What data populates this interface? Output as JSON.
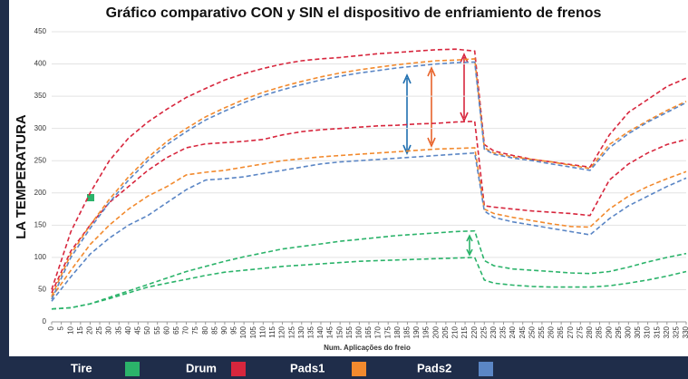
{
  "chart_data": {
    "type": "line",
    "title": "Gráfico comparativo CON y SIN el dispositivo de enfriamiento de frenos",
    "ylabel": "LA TEMPERATURA",
    "xlabel": "Num. Aplicações do freio",
    "x": [
      0,
      10,
      20,
      30,
      40,
      50,
      60,
      70,
      80,
      90,
      100,
      110,
      120,
      130,
      140,
      150,
      160,
      170,
      180,
      190,
      200,
      210,
      220,
      225,
      230,
      240,
      250,
      260,
      270,
      280,
      290,
      300,
      310,
      320,
      330
    ],
    "xlim": [
      0,
      330
    ],
    "xticks": [
      0,
      5,
      10,
      15,
      20,
      25,
      30,
      35,
      40,
      45,
      50,
      55,
      60,
      65,
      70,
      75,
      80,
      85,
      90,
      95,
      100,
      105,
      110,
      115,
      120,
      125,
      130,
      135,
      140,
      145,
      150,
      155,
      160,
      165,
      170,
      175,
      180,
      185,
      190,
      195,
      200,
      205,
      210,
      215,
      220,
      225,
      230,
      235,
      240,
      245,
      250,
      255,
      260,
      265,
      270,
      275,
      280,
      285,
      290,
      295,
      300,
      305,
      310,
      315,
      320,
      325,
      330
    ],
    "ylim": [
      0,
      450
    ],
    "yticks": [
      0,
      50,
      100,
      150,
      200,
      250,
      300,
      350,
      400,
      450
    ],
    "dashed": true,
    "legend": [
      {
        "name": "Tire",
        "color": "#2bb36a"
      },
      {
        "name": "Drum",
        "color": "#d7263d"
      },
      {
        "name": "Pads1",
        "color": "#f28a2e"
      },
      {
        "name": "Pads2",
        "color": "#5b86c5"
      }
    ],
    "series": [
      {
        "color": "#d7263d",
        "values": [
          50,
          140,
          200,
          250,
          285,
          310,
          330,
          348,
          362,
          375,
          385,
          393,
          400,
          405,
          408,
          410,
          413,
          416,
          418,
          420,
          422,
          423,
          420,
          275,
          265,
          258,
          252,
          248,
          244,
          240,
          290,
          325,
          345,
          365,
          378
        ]
      },
      {
        "color": "#d7263d",
        "values": [
          45,
          110,
          150,
          185,
          210,
          235,
          255,
          270,
          276,
          278,
          280,
          283,
          290,
          295,
          298,
          300,
          302,
          304,
          305,
          307,
          308,
          310,
          311,
          180,
          178,
          175,
          172,
          170,
          168,
          165,
          220,
          245,
          262,
          275,
          283
        ]
      },
      {
        "color": "#f28a2e",
        "values": [
          40,
          105,
          150,
          190,
          225,
          255,
          280,
          300,
          318,
          332,
          345,
          356,
          365,
          373,
          380,
          386,
          391,
          395,
          399,
          402,
          405,
          406,
          408,
          270,
          262,
          256,
          252,
          248,
          243,
          238,
          275,
          295,
          312,
          328,
          342
        ]
      },
      {
        "color": "#f28a2e",
        "values": [
          38,
          80,
          120,
          150,
          175,
          195,
          210,
          228,
          232,
          235,
          240,
          245,
          250,
          253,
          256,
          258,
          260,
          262,
          264,
          266,
          268,
          269,
          270,
          175,
          168,
          162,
          157,
          152,
          148,
          147,
          175,
          195,
          210,
          222,
          233
        ]
      },
      {
        "color": "#5b86c5",
        "values": [
          35,
          100,
          145,
          185,
          220,
          250,
          275,
          295,
          313,
          327,
          340,
          351,
          360,
          368,
          375,
          381,
          386,
          390,
          394,
          397,
          400,
          402,
          403,
          268,
          260,
          254,
          250,
          245,
          240,
          235,
          270,
          292,
          310,
          325,
          340
        ]
      },
      {
        "color": "#5b86c5",
        "values": [
          32,
          70,
          105,
          130,
          150,
          165,
          185,
          205,
          220,
          222,
          225,
          230,
          235,
          240,
          245,
          248,
          250,
          252,
          254,
          256,
          258,
          260,
          262,
          172,
          162,
          155,
          150,
          145,
          140,
          135,
          160,
          180,
          195,
          210,
          223
        ]
      },
      {
        "color": "#2bb36a",
        "values": [
          20,
          22,
          28,
          38,
          48,
          58,
          68,
          78,
          86,
          94,
          101,
          107,
          113,
          117,
          121,
          125,
          128,
          131,
          134,
          136,
          138,
          140,
          141,
          95,
          87,
          82,
          80,
          78,
          76,
          75,
          78,
          85,
          93,
          100,
          106
        ]
      },
      {
        "color": "#2bb36a",
        "values": [
          20,
          22,
          28,
          36,
          45,
          54,
          60,
          66,
          72,
          77,
          80,
          83,
          86,
          88,
          90,
          92,
          94,
          95,
          96,
          97,
          98,
          99,
          100,
          65,
          60,
          57,
          55,
          54,
          54,
          54,
          56,
          60,
          65,
          71,
          78
        ]
      }
    ]
  }
}
